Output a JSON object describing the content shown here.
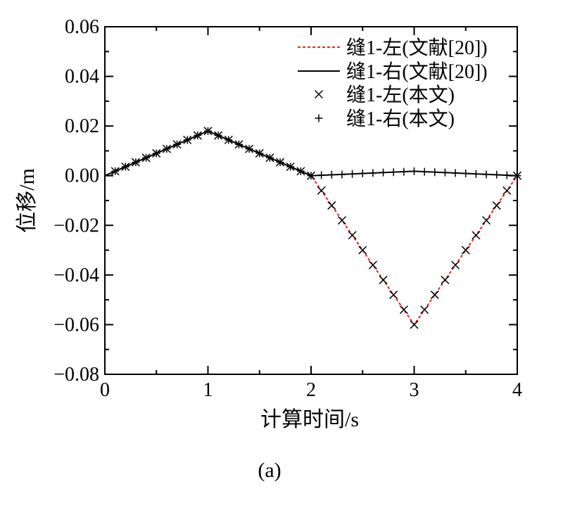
{
  "chart_data": {
    "type": "line",
    "xlabel": "计算时间/s",
    "ylabel": "位移/m",
    "caption": "(a)",
    "xlim": [
      0,
      4
    ],
    "ylim": [
      -0.08,
      0.06
    ],
    "x_ticks": [
      0,
      1,
      2,
      3,
      4
    ],
    "x_tick_labels": [
      "0",
      "1",
      "2",
      "3",
      "4"
    ],
    "y_ticks": [
      0.06,
      0.04,
      0.02,
      0.0,
      -0.02,
      -0.04,
      -0.06,
      -0.08
    ],
    "y_tick_labels": [
      "0.06",
      "0.04",
      "0.02",
      "0.00",
      "−0.02",
      "−0.04",
      "−0.06",
      "−0.08"
    ],
    "legend_position": "top-right",
    "colors": {
      "left_ref": "#e8241c",
      "right_ref": "#000000",
      "markers": "#000000"
    },
    "series": [
      {
        "name": "缝1-左(文献[20])",
        "style": "dashed-line",
        "x": [
          0,
          1,
          2,
          3,
          4
        ],
        "y": [
          0,
          0.018,
          0,
          -0.06,
          0
        ]
      },
      {
        "name": "缝1-右(文献[20])",
        "style": "solid-line",
        "x": [
          0,
          1,
          2,
          3,
          4
        ],
        "y": [
          0,
          0.018,
          0,
          0.0018,
          0
        ]
      },
      {
        "name": "缝1-左(本文)",
        "style": "x-marker",
        "x": [
          0.1,
          0.2,
          0.3,
          0.4,
          0.5,
          0.6,
          0.7,
          0.8,
          0.9,
          1.0,
          1.1,
          1.2,
          1.3,
          1.4,
          1.5,
          1.6,
          1.7,
          1.8,
          1.9,
          2.0,
          2.1,
          2.2,
          2.3,
          2.4,
          2.5,
          2.6,
          2.7,
          2.8,
          2.9,
          3.0,
          3.1,
          3.2,
          3.3,
          3.4,
          3.5,
          3.6,
          3.7,
          3.8,
          3.9,
          4.0
        ],
        "y": [
          0.0018,
          0.0036,
          0.0054,
          0.0072,
          0.009,
          0.0108,
          0.0126,
          0.0144,
          0.0162,
          0.018,
          0.0162,
          0.0144,
          0.0126,
          0.0108,
          0.009,
          0.0072,
          0.0054,
          0.0036,
          0.0018,
          0.0,
          -0.006,
          -0.012,
          -0.018,
          -0.024,
          -0.03,
          -0.036,
          -0.042,
          -0.048,
          -0.054,
          -0.06,
          -0.054,
          -0.048,
          -0.042,
          -0.036,
          -0.03,
          -0.024,
          -0.018,
          -0.012,
          -0.006,
          0.0
        ]
      },
      {
        "name": "缝1-右(本文)",
        "style": "plus-marker",
        "x": [
          0.1,
          0.2,
          0.3,
          0.4,
          0.5,
          0.6,
          0.7,
          0.8,
          0.9,
          1.0,
          1.1,
          1.2,
          1.3,
          1.4,
          1.5,
          1.6,
          1.7,
          1.8,
          1.9,
          2.0,
          2.1,
          2.2,
          2.3,
          2.4,
          2.5,
          2.6,
          2.7,
          2.8,
          2.9,
          3.0,
          3.1,
          3.2,
          3.3,
          3.4,
          3.5,
          3.6,
          3.7,
          3.8,
          3.9,
          4.0
        ],
        "y": [
          0.0018,
          0.0036,
          0.0054,
          0.0072,
          0.009,
          0.0108,
          0.0126,
          0.0144,
          0.0162,
          0.018,
          0.0162,
          0.0144,
          0.0126,
          0.0108,
          0.009,
          0.0072,
          0.0054,
          0.0036,
          0.0018,
          0.0,
          0.0002,
          0.0004,
          0.0005,
          0.0007,
          0.0009,
          0.0011,
          0.0013,
          0.0014,
          0.0016,
          0.0018,
          0.0016,
          0.0014,
          0.0013,
          0.0011,
          0.0009,
          0.0007,
          0.0005,
          0.0004,
          0.0002,
          0.0
        ]
      }
    ]
  }
}
